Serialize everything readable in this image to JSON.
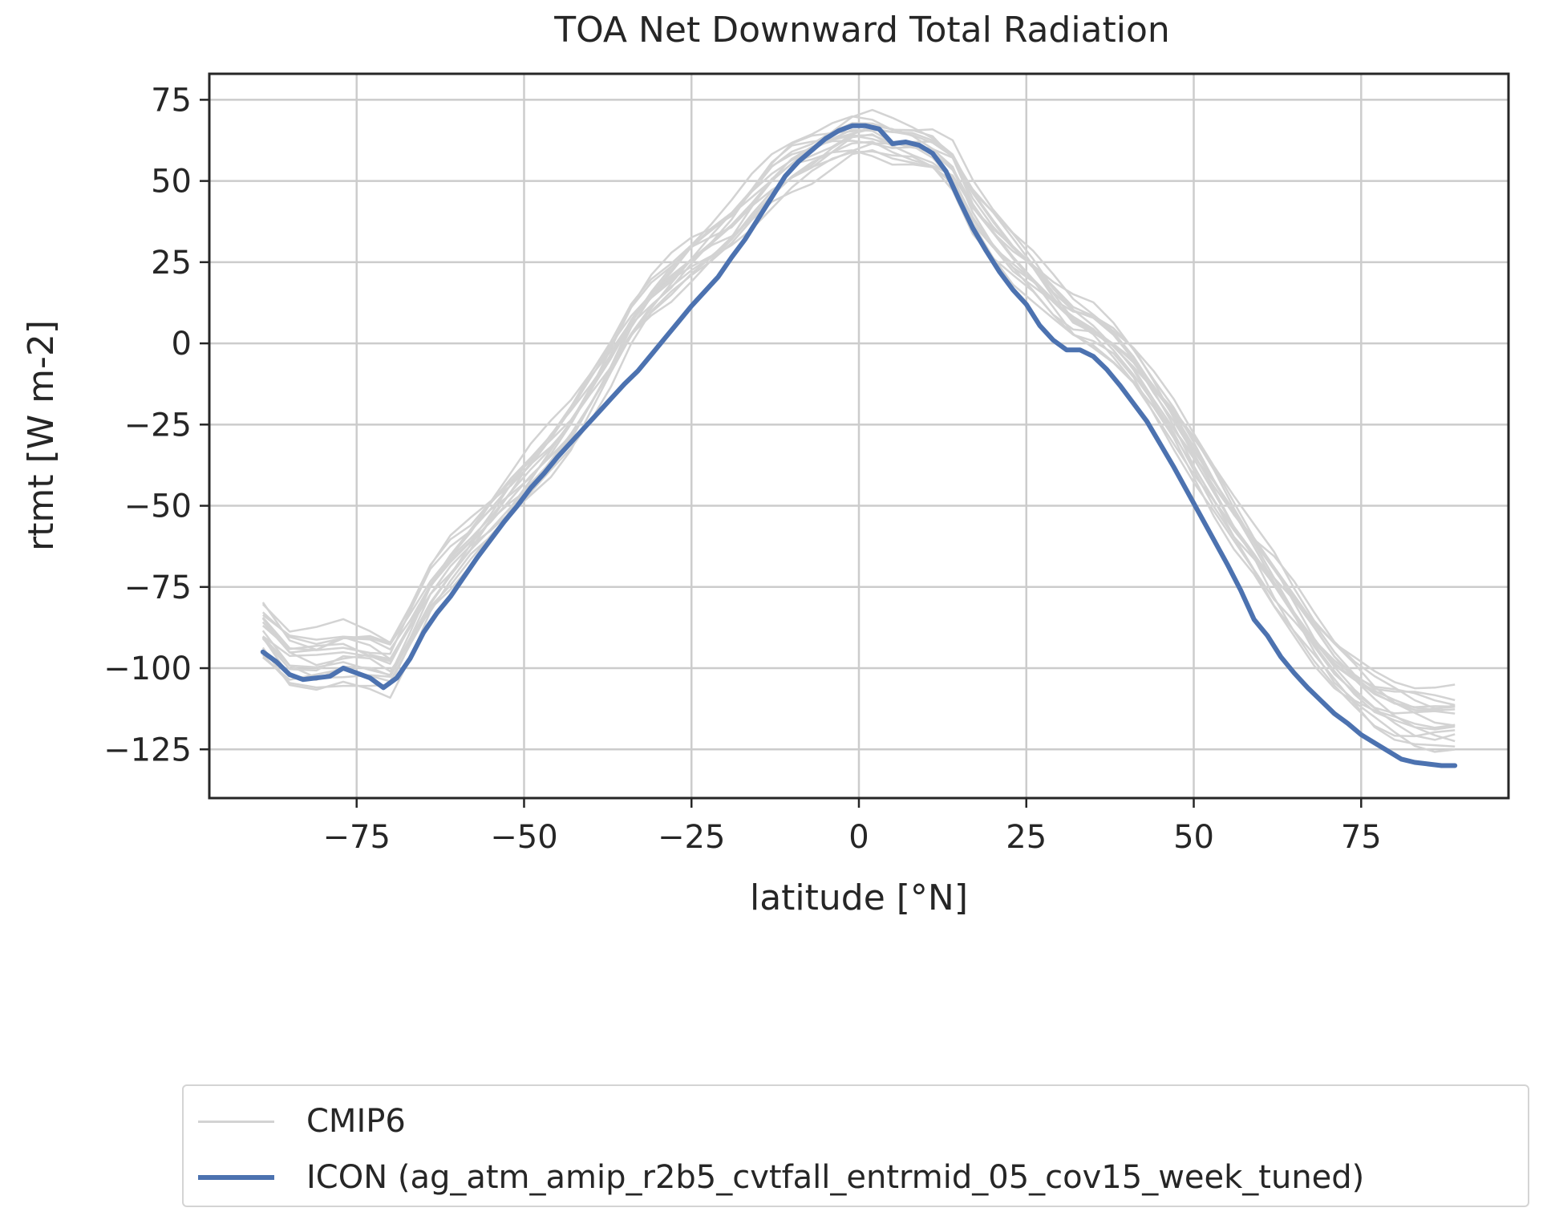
{
  "chart_data": {
    "type": "line",
    "title": "TOA Net Downward Total Radiation",
    "xlabel": "latitude [°N]",
    "ylabel": "rtmt [W m-2]",
    "xlim": [
      -97,
      97
    ],
    "ylim": [
      -140,
      83
    ],
    "xticks": [
      -75,
      -50,
      -25,
      0,
      25,
      50,
      75
    ],
    "xtick_labels": [
      "−75",
      "−50",
      "−25",
      "0",
      "25",
      "50",
      "75"
    ],
    "yticks": [
      75,
      50,
      25,
      0,
      -25,
      -50,
      -75,
      -100,
      -125
    ],
    "ytick_labels": [
      "75",
      "50",
      "25",
      "0",
      "−25",
      "−50",
      "−75",
      "−100",
      "−125"
    ],
    "grid": true,
    "legend_position": "below",
    "colors": {
      "cmip6": "#d3d3d3",
      "icon": "#4c72b0",
      "grid": "#cccccc",
      "axes": "#262626"
    },
    "series": [
      {
        "name": "ICON (ag_atm_amip_r2b5_cvtfall_entrmid_05_cov15_week_tuned)",
        "x": [
          -89,
          -87,
          -85,
          -83,
          -81,
          -79,
          -77,
          -75,
          -73,
          -71,
          -69,
          -67,
          -65,
          -63,
          -61,
          -59,
          -57,
          -55,
          -53,
          -51,
          -49,
          -47,
          -45,
          -43,
          -41,
          -39,
          -37,
          -35,
          -33,
          -31,
          -29,
          -27,
          -25,
          -23,
          -21,
          -19,
          -17,
          -15,
          -13,
          -11,
          -9,
          -7,
          -5,
          -3,
          -1,
          1,
          3,
          5,
          7,
          9,
          11,
          13,
          15,
          17,
          19,
          21,
          23,
          25,
          27,
          29,
          31,
          33,
          35,
          37,
          39,
          41,
          43,
          45,
          47,
          49,
          51,
          53,
          55,
          57,
          59,
          61,
          63,
          65,
          67,
          69,
          71,
          73,
          75,
          77,
          79,
          81,
          83,
          85,
          87,
          89
        ],
        "y": [
          -95,
          -98,
          -102,
          -103.5,
          -103,
          -102.5,
          -100,
          -101.5,
          -103,
          -106,
          -103,
          -97,
          -89,
          -83,
          -78,
          -72,
          -66,
          -60.5,
          -55,
          -50,
          -44.5,
          -40,
          -35,
          -30.5,
          -26,
          -21.5,
          -17,
          -12.5,
          -8.5,
          -3.5,
          1.5,
          6.5,
          11.5,
          16,
          20.5,
          26.5,
          32,
          38.5,
          45,
          51.5,
          56,
          59.5,
          63,
          65.5,
          67,
          67,
          66,
          61.5,
          62,
          61,
          58.5,
          53,
          44,
          35.5,
          28.5,
          22,
          16.5,
          12,
          5.5,
          1,
          -2,
          -2,
          -4,
          -8,
          -13,
          -18.5,
          -24,
          -31,
          -38,
          -45.5,
          -53,
          -60.5,
          -68,
          -76,
          -85,
          -90,
          -96.5,
          -101.5,
          -106,
          -110,
          -114,
          -117,
          -120.5,
          -123,
          -125.5,
          -128,
          -129,
          -129.5,
          -130,
          -130
        ]
      },
      {
        "name": "CMIP6",
        "x": [
          -89,
          -85,
          -81,
          -77,
          -73,
          -70,
          -67,
          -64,
          -61,
          -58,
          -55,
          -52,
          -49,
          -46,
          -43,
          -40,
          -37,
          -34,
          -31,
          -28,
          -25,
          -22,
          -19,
          -16,
          -13,
          -10,
          -7,
          -4,
          -1,
          2,
          5,
          8,
          11,
          14,
          17,
          20,
          23,
          26,
          29,
          32,
          35,
          38,
          41,
          44,
          47,
          50,
          53,
          56,
          59,
          62,
          65,
          68,
          71,
          74,
          77,
          80,
          83,
          86,
          89
        ],
        "y": [
          -88,
          -97,
          -98,
          -96,
          -97,
          -99,
          -88,
          -76,
          -68,
          -61,
          -54,
          -47,
          -40,
          -33,
          -25,
          -15,
          -5,
          6,
          14,
          20,
          26,
          31,
          36,
          43,
          50,
          55,
          58,
          61,
          63.5,
          64,
          62,
          61,
          59,
          54,
          42,
          34,
          27,
          21,
          14,
          8,
          5,
          0,
          -7,
          -16,
          -25,
          -35,
          -45,
          -55,
          -64,
          -73,
          -82,
          -91,
          -99,
          -105,
          -110,
          -113,
          -115,
          -116,
          -116
        ],
        "note_members_drawn_as_ensemble": true
      }
    ]
  },
  "legend": {
    "items": [
      {
        "label": "CMIP6"
      },
      {
        "label": "ICON (ag_atm_amip_r2b5_cvtfall_entrmid_05_cov15_week_tuned)"
      }
    ]
  }
}
